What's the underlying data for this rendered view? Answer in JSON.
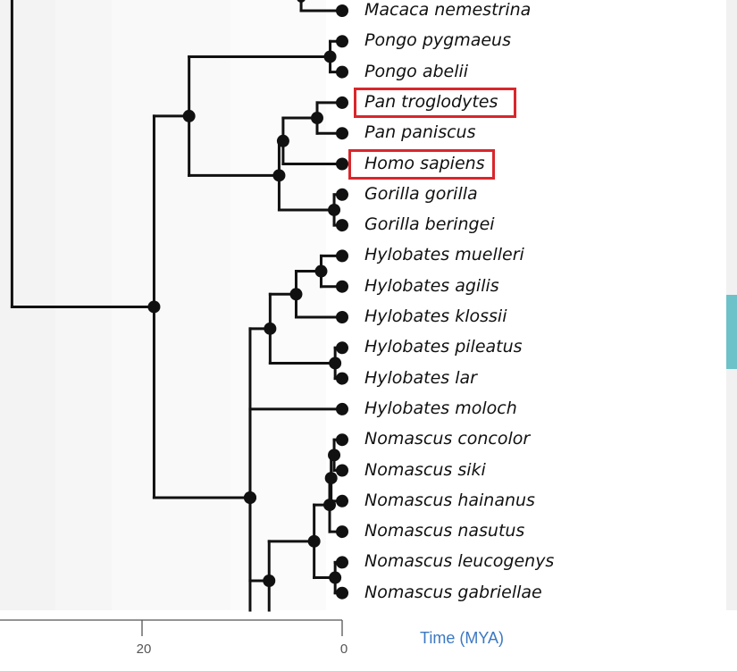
{
  "colors": {
    "branch": "#111111",
    "highlight": "#d9262c",
    "axis_title": "#3b78c3",
    "scrollbar_thumb": "#6cc2c8",
    "bands": [
      "#f3f3f3",
      "#f6f6f6",
      "#f9f9f9",
      "#fbfbfb"
    ]
  },
  "axis": {
    "title": "Time (MYA)",
    "ticks": [
      {
        "value": 20,
        "label": "20"
      },
      {
        "value": 0,
        "label": "0"
      }
    ]
  },
  "leaves": [
    {
      "id": "macaca",
      "label": "Macaca nemestrina",
      "highlighted": false
    },
    {
      "id": "pongo_p",
      "label": "Pongo pygmaeus",
      "highlighted": false
    },
    {
      "id": "pongo_a",
      "label": "Pongo abelii",
      "highlighted": false
    },
    {
      "id": "pan_t",
      "label": "Pan troglodytes",
      "highlighted": true
    },
    {
      "id": "pan_p",
      "label": "Pan paniscus",
      "highlighted": false
    },
    {
      "id": "homo",
      "label": "Homo sapiens",
      "highlighted": true
    },
    {
      "id": "gor_g",
      "label": "Gorilla gorilla",
      "highlighted": false
    },
    {
      "id": "gor_b",
      "label": "Gorilla beringei",
      "highlighted": false
    },
    {
      "id": "hyl_mu",
      "label": "Hylobates muelleri",
      "highlighted": false
    },
    {
      "id": "hyl_ag",
      "label": "Hylobates agilis",
      "highlighted": false
    },
    {
      "id": "hyl_kl",
      "label": "Hylobates klossii",
      "highlighted": false
    },
    {
      "id": "hyl_pi",
      "label": "Hylobates pileatus",
      "highlighted": false
    },
    {
      "id": "hyl_la",
      "label": "Hylobates lar",
      "highlighted": false
    },
    {
      "id": "hyl_mo",
      "label": "Hylobates moloch",
      "highlighted": false
    },
    {
      "id": "nom_co",
      "label": "Nomascus concolor",
      "highlighted": false
    },
    {
      "id": "nom_si",
      "label": "Nomascus siki",
      "highlighted": false
    },
    {
      "id": "nom_ha",
      "label": "Nomascus hainanus",
      "highlighted": false
    },
    {
      "id": "nom_na",
      "label": "Nomascus nasutus",
      "highlighted": false
    },
    {
      "id": "nom_le",
      "label": "Nomascus leucogenys",
      "highlighted": false
    },
    {
      "id": "nom_ga",
      "label": "Nomascus gabriellae",
      "highlighted": false
    }
  ],
  "tree": {
    "root_age": 33.0,
    "macaca_branch_age": 4.1,
    "nodes": [
      {
        "id": "hominoidea",
        "age": 18.8,
        "children": [
          "hominidae",
          "hylobatidae"
        ]
      },
      {
        "id": "hominidae",
        "age": 15.3,
        "children": [
          "pongo",
          "homininae"
        ]
      },
      {
        "id": "pongo",
        "age": 1.2,
        "children": [
          "pongo_p",
          "pongo_a"
        ]
      },
      {
        "id": "homininae",
        "age": 6.3,
        "children": [
          "panhomo",
          "gorilla"
        ]
      },
      {
        "id": "panhomo",
        "age": 5.9,
        "children": [
          "pan",
          "homo"
        ]
      },
      {
        "id": "pan",
        "age": 2.5,
        "children": [
          "pan_t",
          "pan_p"
        ]
      },
      {
        "id": "gorilla",
        "age": 0.8,
        "children": [
          "gor_g",
          "gor_b"
        ]
      },
      {
        "id": "hylobatidae",
        "age": 9.2,
        "children": [
          "hylobates",
          "hyl_mo",
          "nomascus_all"
        ]
      },
      {
        "id": "hylobates",
        "age": 7.2,
        "children": [
          "hyl_a",
          "hyl_b"
        ]
      },
      {
        "id": "hyl_a",
        "age": 4.6,
        "children": [
          "hyl_a1",
          "hyl_kl"
        ]
      },
      {
        "id": "hyl_a1",
        "age": 2.1,
        "children": [
          "hyl_mu",
          "hyl_ag"
        ]
      },
      {
        "id": "hyl_b",
        "age": 0.7,
        "children": [
          "hyl_pi",
          "hyl_la"
        ]
      },
      {
        "id": "nomascus_all",
        "age": 7.3,
        "children": [
          "nomascus"
        ]
      },
      {
        "id": "nomascus",
        "age": 2.8,
        "children": [
          "nom_c",
          "nom_lg"
        ]
      },
      {
        "id": "nom_c",
        "age": 1.25,
        "children": [
          "nom_b",
          "nom_na"
        ]
      },
      {
        "id": "nom_b",
        "age": 1.1,
        "children": [
          "nom_a",
          "nom_ha"
        ]
      },
      {
        "id": "nom_a",
        "age": 0.8,
        "children": [
          "nom_co",
          "nom_si"
        ]
      },
      {
        "id": "nom_lg",
        "age": 0.7,
        "children": [
          "nom_le",
          "nom_ga"
        ]
      }
    ]
  }
}
